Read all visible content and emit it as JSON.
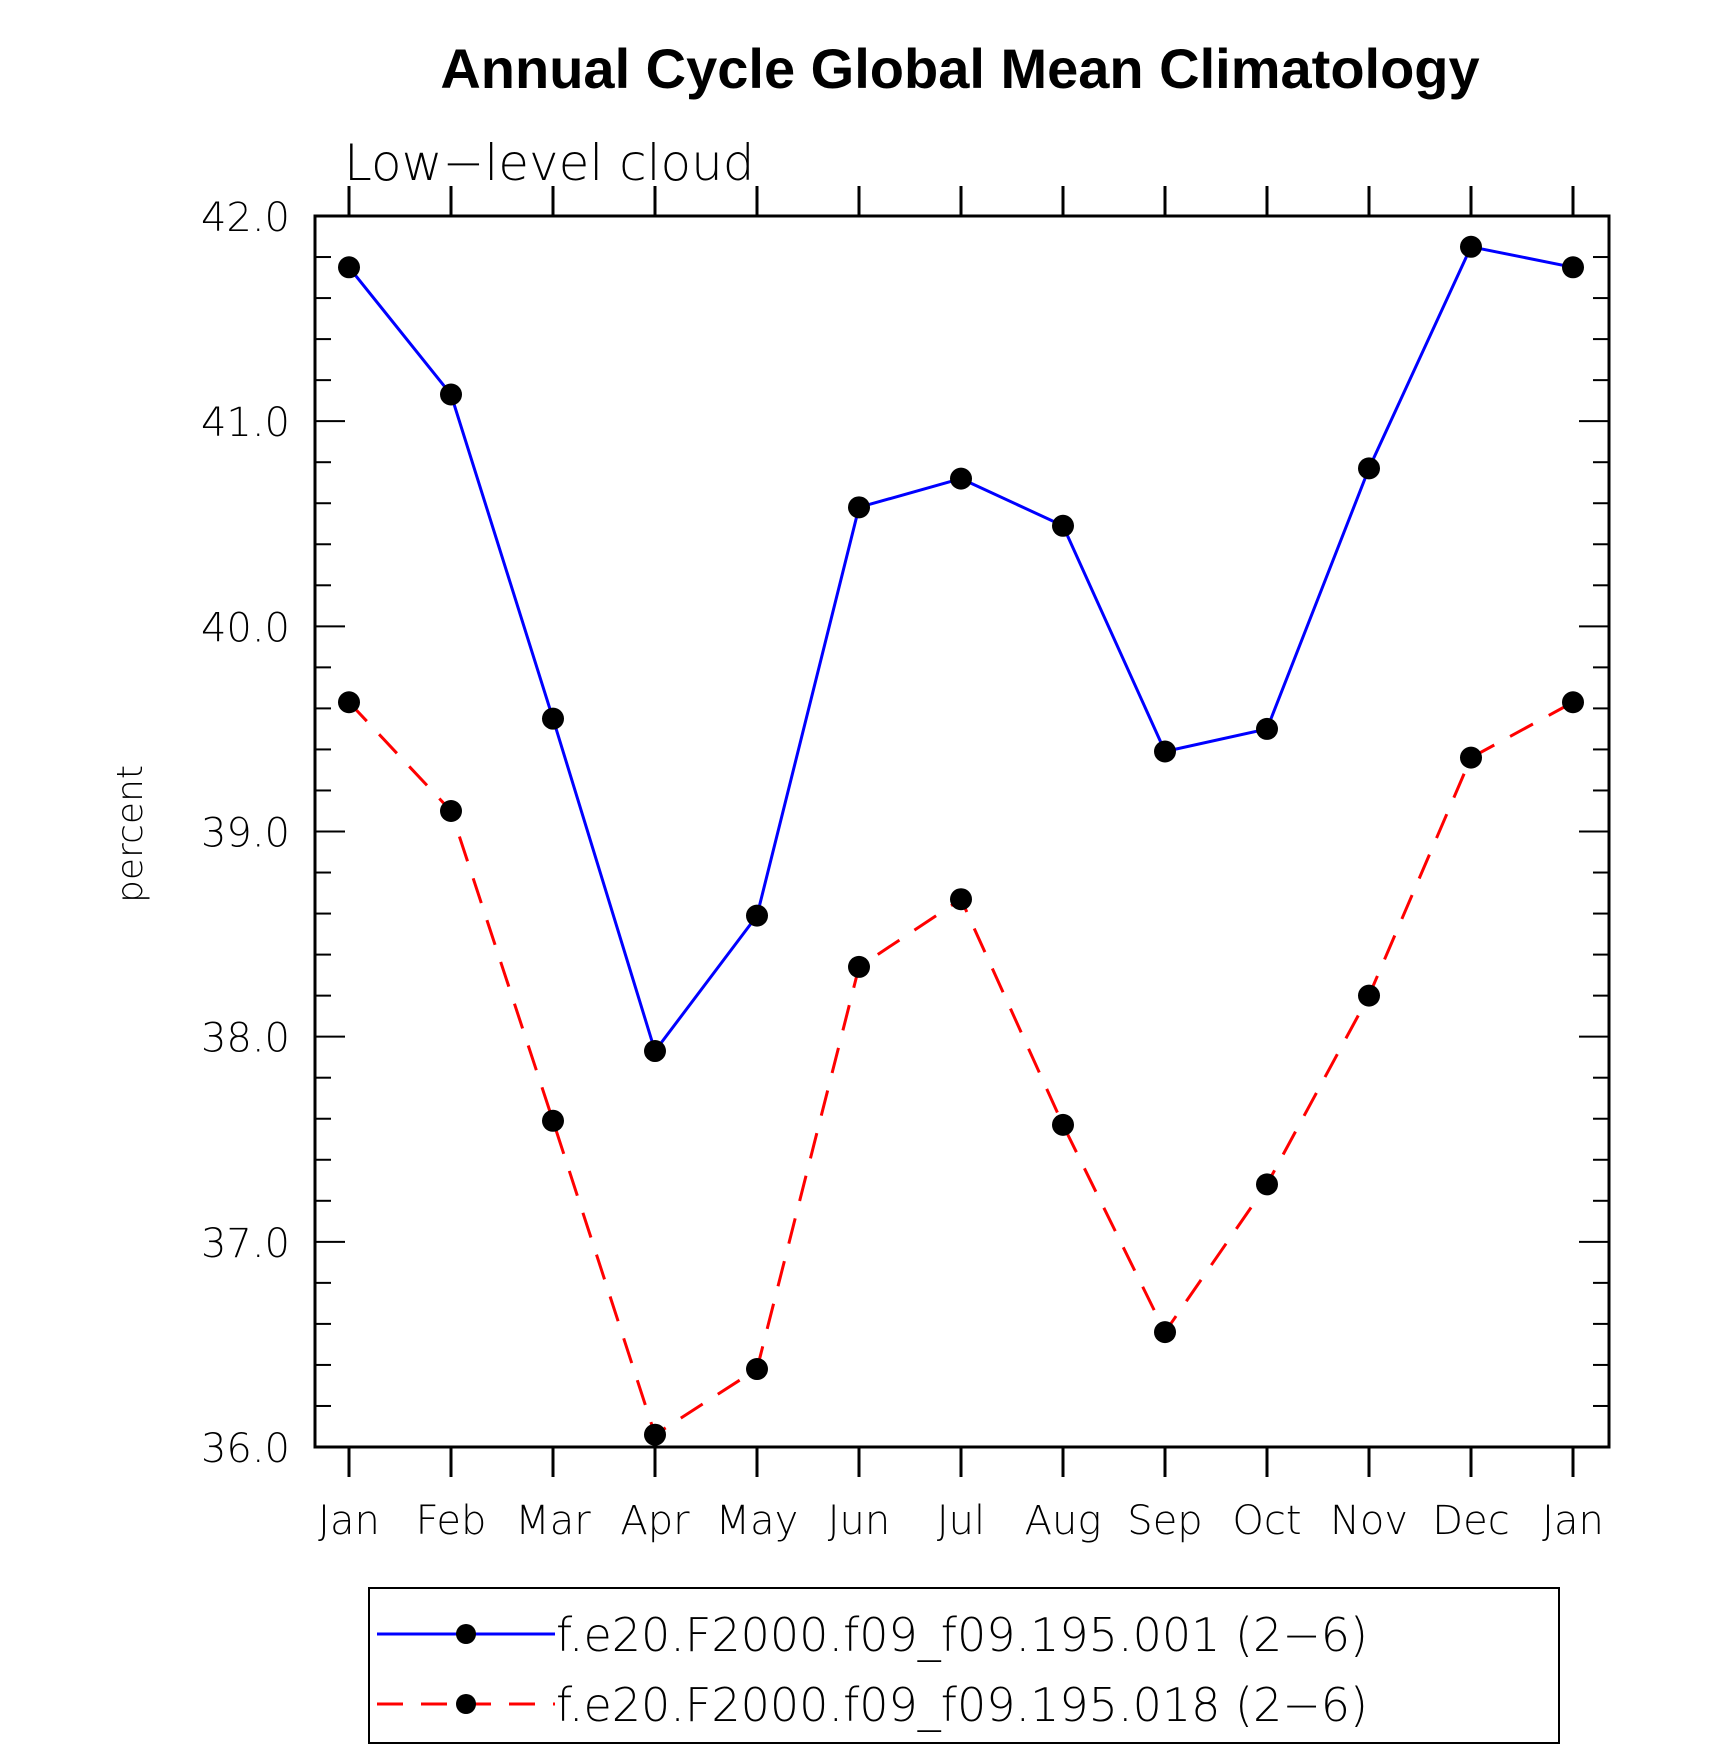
{
  "chart_data": {
    "type": "line",
    "title": "Annual Cycle Global Mean Climatology",
    "subtitle": "Low−level cloud",
    "xlabel": "",
    "ylabel": "percent",
    "ylim": [
      36.0,
      42.0
    ],
    "y_ticks": [
      "36.0",
      "37.0",
      "38.0",
      "39.0",
      "40.0",
      "41.0",
      "42.0"
    ],
    "categories": [
      "Jan",
      "Feb",
      "Mar",
      "Apr",
      "May",
      "Jun",
      "Jul",
      "Aug",
      "Sep",
      "Oct",
      "Nov",
      "Dec",
      "Jan"
    ],
    "series": [
      {
        "name": "f.e20.F2000.f09_f09.195.001 (2−6)",
        "color": "#0000ff",
        "dash": "solid",
        "values": [
          41.75,
          41.13,
          39.55,
          37.93,
          38.59,
          40.58,
          40.72,
          40.49,
          39.39,
          39.5,
          40.77,
          41.85,
          41.75
        ]
      },
      {
        "name": "f.e20.F2000.f09_f09.195.018 (2−6)",
        "color": "#ff0000",
        "dash": "dashed",
        "values": [
          39.63,
          39.1,
          37.59,
          36.06,
          36.38,
          38.34,
          38.67,
          37.57,
          36.56,
          37.28,
          38.2,
          39.36,
          39.63
        ]
      }
    ],
    "legend_position": "bottom-center",
    "marker": "filled-circle",
    "marker_color": "#000000"
  }
}
